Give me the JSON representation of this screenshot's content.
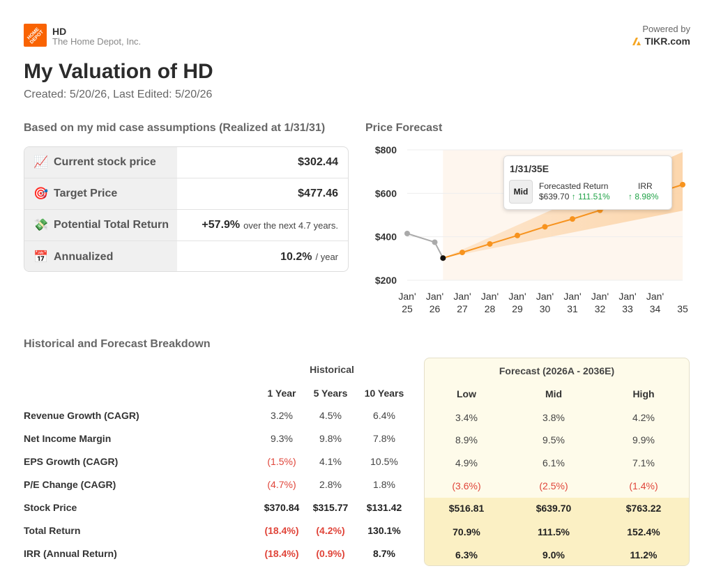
{
  "header": {
    "logo_text": "HOME DEPOT",
    "ticker": "HD",
    "company": "The Home Depot, Inc.",
    "powered_by": "Powered by",
    "brand": "TIKR.com",
    "title": "My Valuation of HD",
    "subtitle": "Created: 5/20/26, Last Edited: 5/20/26"
  },
  "summary": {
    "heading": "Based on my mid case assumptions (Realized at 1/31/31)",
    "rows": [
      {
        "icon": "chart-increasing-icon",
        "glyph": "📈",
        "label": "Current stock price",
        "value": "$302.44",
        "suffix": ""
      },
      {
        "icon": "target-icon",
        "glyph": "🎯",
        "label": "Target Price",
        "value": "$477.46",
        "suffix": ""
      },
      {
        "icon": "money-icon",
        "glyph": "💸",
        "label": "Potential Total Return",
        "value": "+57.9%",
        "suffix": "over the next 4.7 years."
      },
      {
        "icon": "calendar-icon",
        "glyph": "📅",
        "label": "Annualized",
        "value": "10.2%",
        "suffix": "/ year"
      }
    ]
  },
  "chart_data": {
    "type": "line",
    "title": "Price Forecast",
    "ylim": [
      200,
      800
    ],
    "yticks": [
      "$800",
      "$600",
      "$400",
      "$200"
    ],
    "ytick_values": [
      800,
      600,
      400,
      200
    ],
    "xticks": [
      {
        "line1": "Jan'",
        "line2": "25",
        "x": 2025
      },
      {
        "line1": "Jan'",
        "line2": "26",
        "x": 2026
      },
      {
        "line1": "Jan'",
        "line2": "27",
        "x": 2027
      },
      {
        "line1": "Jan'",
        "line2": "28",
        "x": 2028
      },
      {
        "line1": "Jan'",
        "line2": "29",
        "x": 2029
      },
      {
        "line1": "Jan'",
        "line2": "30",
        "x": 2030
      },
      {
        "line1": "Jan'",
        "line2": "31",
        "x": 2031
      },
      {
        "line1": "Jan'",
        "line2": "32",
        "x": 2032
      },
      {
        "line1": "Jan'",
        "line2": "33",
        "x": 2033
      },
      {
        "line1": "Jan'",
        "line2": "34",
        "x": 2034
      },
      {
        "line1": "",
        "line2": "35",
        "x": 2035
      }
    ],
    "xlim": [
      2025,
      2035
    ],
    "forecast_start": 2026.3,
    "series": [
      {
        "role": "historical",
        "color": "#aaaaaa",
        "points": [
          [
            2025,
            415
          ],
          [
            2026,
            375
          ],
          [
            2026.3,
            302
          ]
        ]
      },
      {
        "role": "forecast",
        "color": "#f7931e",
        "points": [
          [
            2026.3,
            302
          ],
          [
            2027,
            328
          ],
          [
            2028,
            367
          ],
          [
            2029,
            406
          ],
          [
            2030,
            446
          ],
          [
            2031,
            482
          ],
          [
            2032,
            522
          ],
          [
            2033,
            560
          ],
          [
            2034,
            600
          ],
          [
            2035,
            640
          ]
        ]
      }
    ],
    "band_high": [
      [
        2026.3,
        302
      ],
      [
        2035,
        790
      ]
    ],
    "band_low": [
      [
        2026.3,
        302
      ],
      [
        2035,
        520
      ]
    ],
    "grid": true
  },
  "tooltip": {
    "date": "1/31/35E",
    "badge": "Mid",
    "forecast_label": "Forecasted Return",
    "forecast_price": "$639.70",
    "forecast_return": "↑ 111.51%",
    "irr_label": "IRR",
    "irr_value": "↑ 8.98%"
  },
  "breakdown": {
    "heading": "Historical and Forecast Breakdown",
    "historical_title": "Historical",
    "forecast_title": "Forecast (2026A - 2036E)",
    "columns": [
      "1 Year",
      "5 Years",
      "10 Years",
      "Low",
      "Mid",
      "High"
    ],
    "rows": [
      {
        "label": "Revenue Growth (CAGR)",
        "values": [
          "3.2%",
          "4.5%",
          "6.4%",
          "3.4%",
          "3.8%",
          "4.2%"
        ]
      },
      {
        "label": "Net Income Margin",
        "values": [
          "9.3%",
          "9.8%",
          "7.8%",
          "8.9%",
          "9.5%",
          "9.9%"
        ]
      },
      {
        "label": "EPS Growth (CAGR)",
        "values": [
          "(1.5%)",
          "4.1%",
          "10.5%",
          "4.9%",
          "6.1%",
          "7.1%"
        ]
      },
      {
        "label": "P/E Change (CAGR)",
        "values": [
          "(4.7%)",
          "2.8%",
          "1.8%",
          "(3.6%)",
          "(2.5%)",
          "(1.4%)"
        ]
      },
      {
        "label": "Stock Price",
        "values": [
          "$370.84",
          "$315.77",
          "$131.42",
          "$516.81",
          "$639.70",
          "$763.22"
        ]
      },
      {
        "label": "Total Return",
        "values": [
          "(18.4%)",
          "(4.2%)",
          "130.1%",
          "70.9%",
          "111.5%",
          "152.4%"
        ]
      },
      {
        "label": "IRR (Annual Return)",
        "values": [
          "(18.4%)",
          "(0.9%)",
          "8.7%",
          "6.3%",
          "9.0%",
          "11.2%"
        ]
      }
    ]
  }
}
